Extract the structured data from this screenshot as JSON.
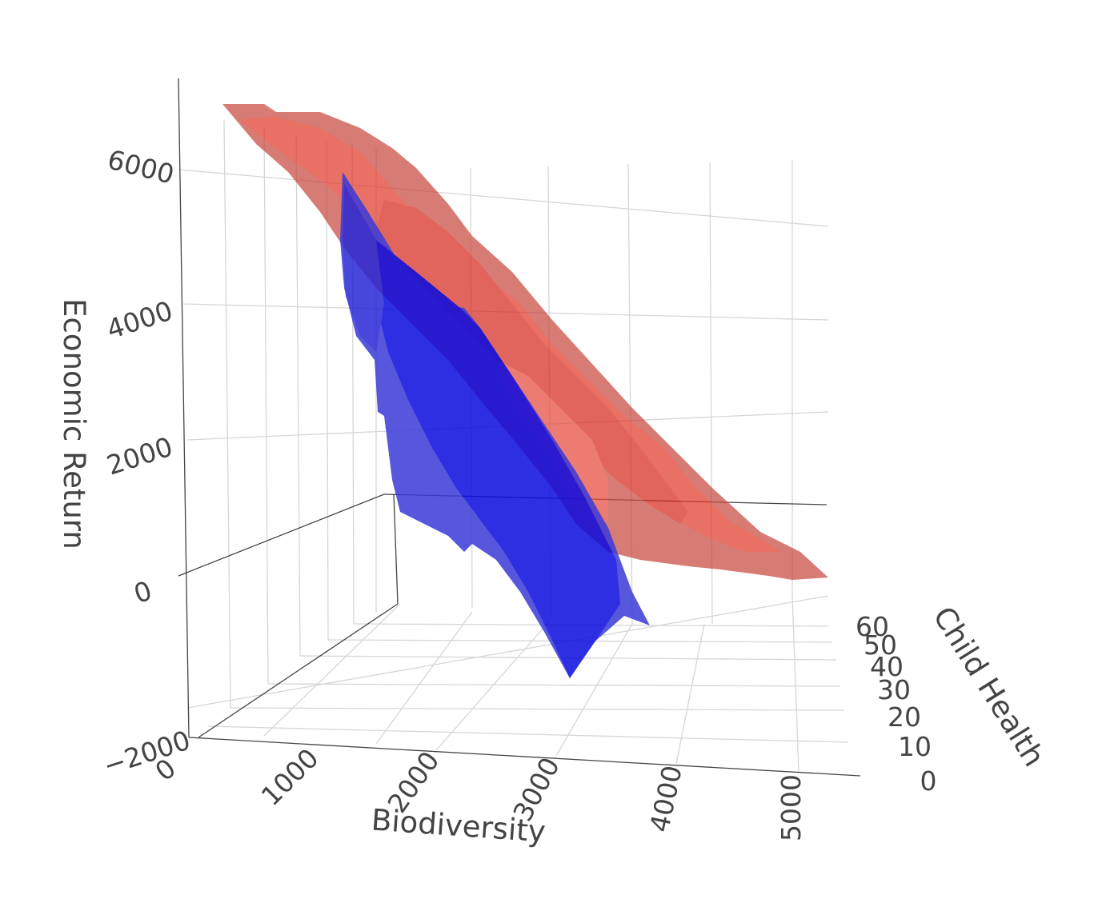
{
  "chart_data": {
    "type": "surface3d",
    "axes": {
      "x": {
        "title": "Biodiversity",
        "ticks": [
          "0",
          "1000",
          "2000",
          "3000",
          "4000",
          "5000"
        ],
        "range": [
          0,
          5200
        ]
      },
      "y": {
        "title": "Child Health",
        "ticks": [
          "0",
          "10",
          "20",
          "30",
          "40",
          "50",
          "60"
        ],
        "range": [
          0,
          62
        ]
      },
      "z": {
        "title": "Economic Return",
        "ticks": [
          "−2000",
          "0",
          "2000",
          "4000",
          "6000"
        ],
        "range": [
          -2800,
          7200
        ]
      }
    },
    "grid": true,
    "series": [
      {
        "color": "#e8382b",
        "opacity": 0.7,
        "points": [
          {
            "x": 300,
            "y": 60,
            "z": 6700
          },
          {
            "x": 1000,
            "y": 60,
            "z": 6300
          },
          {
            "x": 2000,
            "y": 55,
            "z": 4900
          },
          {
            "x": 3000,
            "y": 45,
            "z": 3000
          },
          {
            "x": 4000,
            "y": 35,
            "z": 1700
          },
          {
            "x": 5000,
            "y": 25,
            "z": 1300
          },
          {
            "x": 5300,
            "y": 20,
            "z": 1200
          }
        ]
      },
      {
        "color": "#0a0adf",
        "opacity": 0.8,
        "points": [
          {
            "x": 1300,
            "y": 60,
            "z": 6100
          },
          {
            "x": 1700,
            "y": 55,
            "z": 4200
          },
          {
            "x": 2200,
            "y": 45,
            "z": 2000
          },
          {
            "x": 2800,
            "y": 30,
            "z": 0
          },
          {
            "x": 3200,
            "y": 20,
            "z": -1500
          }
        ]
      }
    ]
  }
}
